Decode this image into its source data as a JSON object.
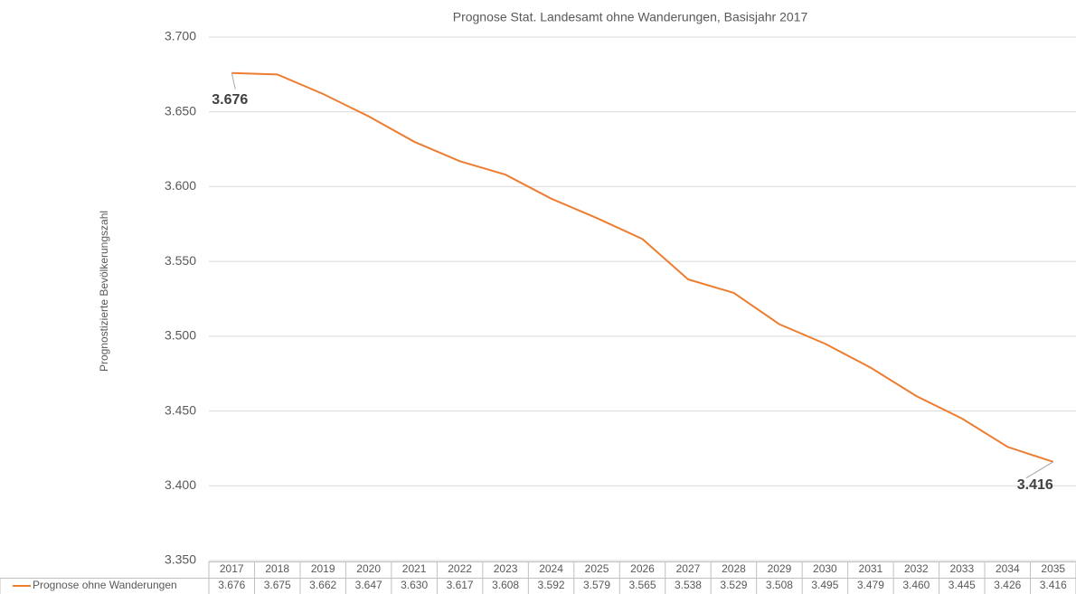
{
  "chart_data": {
    "type": "line",
    "title": "Prognose Stat. Landesamt  ohne Wanderungen, Basisjahr 2017",
    "y_label": "Prognostizierte Bevölkerungszahl",
    "categories": [
      "2017",
      "2018",
      "2019",
      "2020",
      "2021",
      "2022",
      "2023",
      "2024",
      "2025",
      "2026",
      "2027",
      "2028",
      "2029",
      "2030",
      "2031",
      "2032",
      "2033",
      "2034",
      "2035"
    ],
    "series": [
      {
        "name": "Prognose ohne Wanderungen",
        "color": "#ED7D31",
        "values": [
          3676,
          3675,
          3662,
          3647,
          3630,
          3617,
          3608,
          3592,
          3579,
          3565,
          3538,
          3529,
          3508,
          3495,
          3479,
          3460,
          3445,
          3426,
          3416
        ],
        "value_labels": [
          "3.676",
          "3.675",
          "3.662",
          "3.647",
          "3.630",
          "3.617",
          "3.608",
          "3.592",
          "3.579",
          "3.565",
          "3.538",
          "3.529",
          "3.508",
          "3.495",
          "3.479",
          "3.460",
          "3.445",
          "3.426",
          "3.416"
        ]
      }
    ],
    "ylim": [
      3350,
      3700
    ],
    "yticks": [
      {
        "value": 3350,
        "label": "3.350"
      },
      {
        "value": 3400,
        "label": "3.400"
      },
      {
        "value": 3450,
        "label": "3.450"
      },
      {
        "value": 3500,
        "label": "3.500"
      },
      {
        "value": 3550,
        "label": "3.550"
      },
      {
        "value": 3600,
        "label": "3.600"
      },
      {
        "value": 3650,
        "label": "3.650"
      },
      {
        "value": 3700,
        "label": "3.700"
      }
    ],
    "grid": true
  }
}
